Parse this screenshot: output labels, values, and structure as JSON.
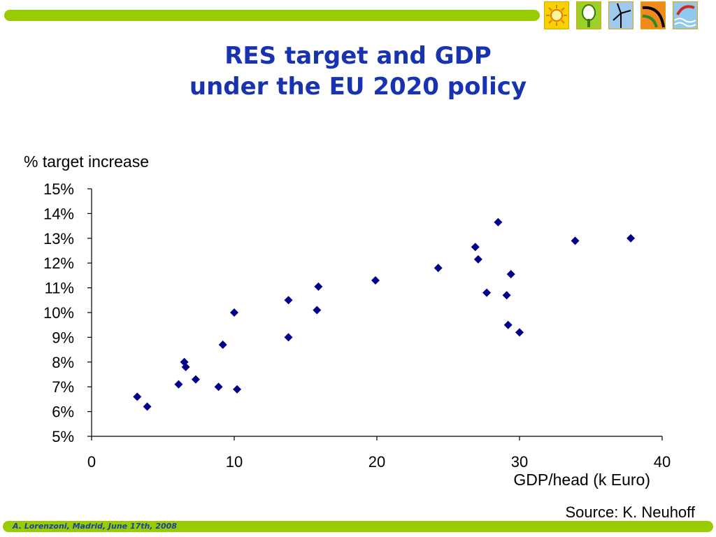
{
  "slide": {
    "title_line1": "RES target and GDP",
    "title_line2": "under the EU 2020 policy",
    "source": "Source: K. Neuhoff",
    "footer": "A. Lorenzoni, Madrid, June 17th, 2008",
    "logo_icons": [
      "sun-icon",
      "tree-icon",
      "wind-turbine-icon",
      "hydro-icon",
      "wave-icon"
    ],
    "colors": {
      "accent_bar": "#99cc00",
      "title": "#1833b0",
      "marker": "#00008b"
    }
  },
  "chart_data": {
    "type": "scatter",
    "title": "",
    "xlabel": "GDP/head (k Euro)",
    "ylabel": "% target increase",
    "xlim": [
      0,
      40
    ],
    "ylim": [
      5,
      15
    ],
    "x_ticks": [
      "0",
      "10",
      "20",
      "30",
      "40"
    ],
    "y_ticks": [
      "5%",
      "6%",
      "7%",
      "8%",
      "9%",
      "10%",
      "11%",
      "12%",
      "13%",
      "14%",
      "15%"
    ],
    "grid": false,
    "legend": "none",
    "points": [
      {
        "x": 3.2,
        "y": 6.6
      },
      {
        "x": 3.9,
        "y": 6.2
      },
      {
        "x": 6.1,
        "y": 7.1
      },
      {
        "x": 6.5,
        "y": 8.0
      },
      {
        "x": 6.6,
        "y": 7.8
      },
      {
        "x": 7.3,
        "y": 7.3
      },
      {
        "x": 8.9,
        "y": 7.0
      },
      {
        "x": 9.2,
        "y": 8.7
      },
      {
        "x": 10.0,
        "y": 10.0
      },
      {
        "x": 10.2,
        "y": 6.9
      },
      {
        "x": 13.8,
        "y": 10.5
      },
      {
        "x": 13.8,
        "y": 9.0
      },
      {
        "x": 15.8,
        "y": 10.1
      },
      {
        "x": 15.9,
        "y": 11.05
      },
      {
        "x": 19.9,
        "y": 11.3
      },
      {
        "x": 24.3,
        "y": 11.8
      },
      {
        "x": 26.9,
        "y": 12.65
      },
      {
        "x": 27.1,
        "y": 12.15
      },
      {
        "x": 27.7,
        "y": 10.8
      },
      {
        "x": 28.5,
        "y": 13.65
      },
      {
        "x": 29.1,
        "y": 10.7
      },
      {
        "x": 29.2,
        "y": 9.5
      },
      {
        "x": 29.4,
        "y": 11.55
      },
      {
        "x": 30.0,
        "y": 9.2
      },
      {
        "x": 33.9,
        "y": 12.9
      },
      {
        "x": 37.8,
        "y": 13.0
      }
    ]
  }
}
